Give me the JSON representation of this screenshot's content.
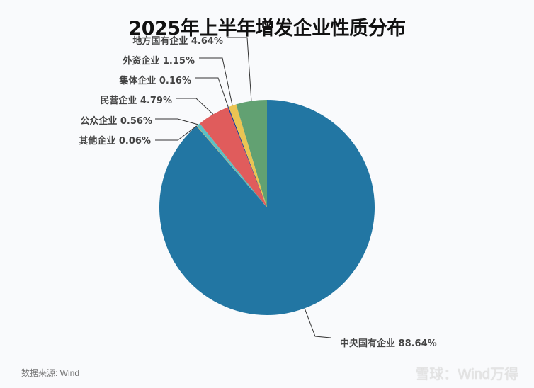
{
  "title": "2025年上半年增发企业性质分布",
  "source": "数据来源: Wind",
  "watermark": "雪球：Wind万得",
  "background_watermark": "Wind",
  "chart_data": {
    "type": "pie",
    "title": "2025年上半年增发企业性质分布",
    "categories": [
      "中央国有企业",
      "其他企业",
      "公众企业",
      "民营企业",
      "集体企业",
      "外资企业",
      "地方国有企业"
    ],
    "values": [
      88.64,
      0.06,
      0.56,
      4.79,
      0.16,
      1.15,
      4.64
    ],
    "unit": "%",
    "colors": [
      "#2276a3",
      "#e3a23c",
      "#5bc0c4",
      "#e05c5c",
      "#1f3b8f",
      "#ebc453",
      "#62a172"
    ],
    "labels": [
      "中央国有企业 88.64%",
      "其他企业 0.06%",
      "公众企业 0.56%",
      "民营企业 4.79%",
      "集体企业 0.16%",
      "外资企业 1.15%",
      "地方国有企业 4.64%"
    ],
    "legend": "none (leader-line labels)"
  }
}
